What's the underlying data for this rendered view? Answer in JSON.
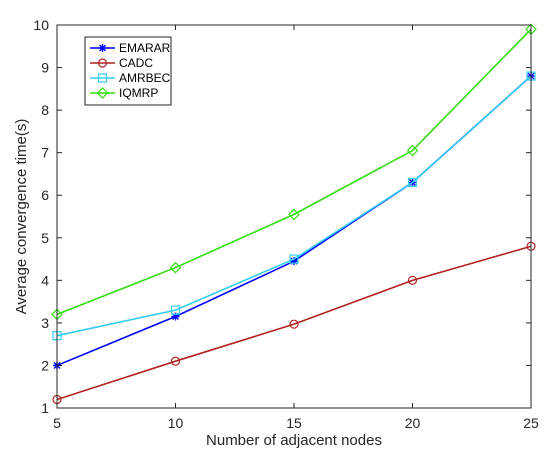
{
  "chart_data": {
    "type": "line",
    "xlabel": "Number of adjacent nodes",
    "ylabel": "Average convergence time(s)",
    "xlim": [
      5,
      25
    ],
    "ylim": [
      1,
      10
    ],
    "x_ticks": [
      5,
      10,
      15,
      20,
      25
    ],
    "y_ticks": [
      1,
      2,
      3,
      4,
      5,
      6,
      7,
      8,
      9,
      10
    ],
    "x": [
      5,
      10,
      15,
      20,
      25
    ],
    "grid": false,
    "legend_position": "top-left",
    "series": [
      {
        "name": "EMARAR",
        "values": [
          2.0,
          3.15,
          4.45,
          6.3,
          8.8
        ],
        "color": "#0000ff",
        "marker": "asterisk"
      },
      {
        "name": "CADC",
        "values": [
          1.2,
          2.1,
          2.97,
          4.0,
          4.8
        ],
        "color": "#b22222",
        "marker": "circle"
      },
      {
        "name": "AMRBEC",
        "values": [
          2.7,
          3.3,
          4.5,
          6.3,
          8.8
        ],
        "color": "#33ccee",
        "marker": "square"
      },
      {
        "name": "IQMRP",
        "values": [
          3.2,
          4.3,
          5.55,
          7.05,
          9.9
        ],
        "color": "#33dd11",
        "marker": "diamond"
      }
    ]
  }
}
